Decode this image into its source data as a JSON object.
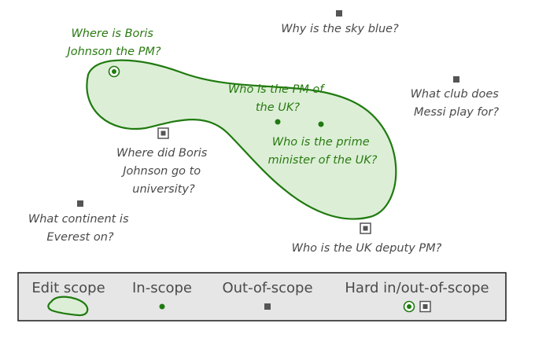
{
  "colors": {
    "in_scope": "#1f7a0f",
    "scope_fill": "#dcefd6",
    "out_of_scope": "#555555",
    "legend_bg": "#e6e6e6"
  },
  "questions": {
    "boris_pm": [
      "Where is Boris",
      "Johnson the PM?"
    ],
    "sky": [
      "Why is the sky blue?"
    ],
    "who_pm": [
      "Who is the PM of",
      "the UK?"
    ],
    "messi": [
      "What club does",
      "Messi play for?"
    ],
    "prime_minister": [
      "Who is the prime",
      "minister of the UK?"
    ],
    "university": [
      "Where did Boris",
      "Johnson go to",
      "university?"
    ],
    "everest": [
      "What continent is",
      "Everest on?"
    ],
    "deputy": [
      "Who is the UK deputy PM?"
    ]
  },
  "legend": {
    "edit_scope": "Edit scope",
    "in_scope": "In-scope",
    "out_of_scope": "Out-of-scope",
    "hard": "Hard in/out-of-scope"
  }
}
